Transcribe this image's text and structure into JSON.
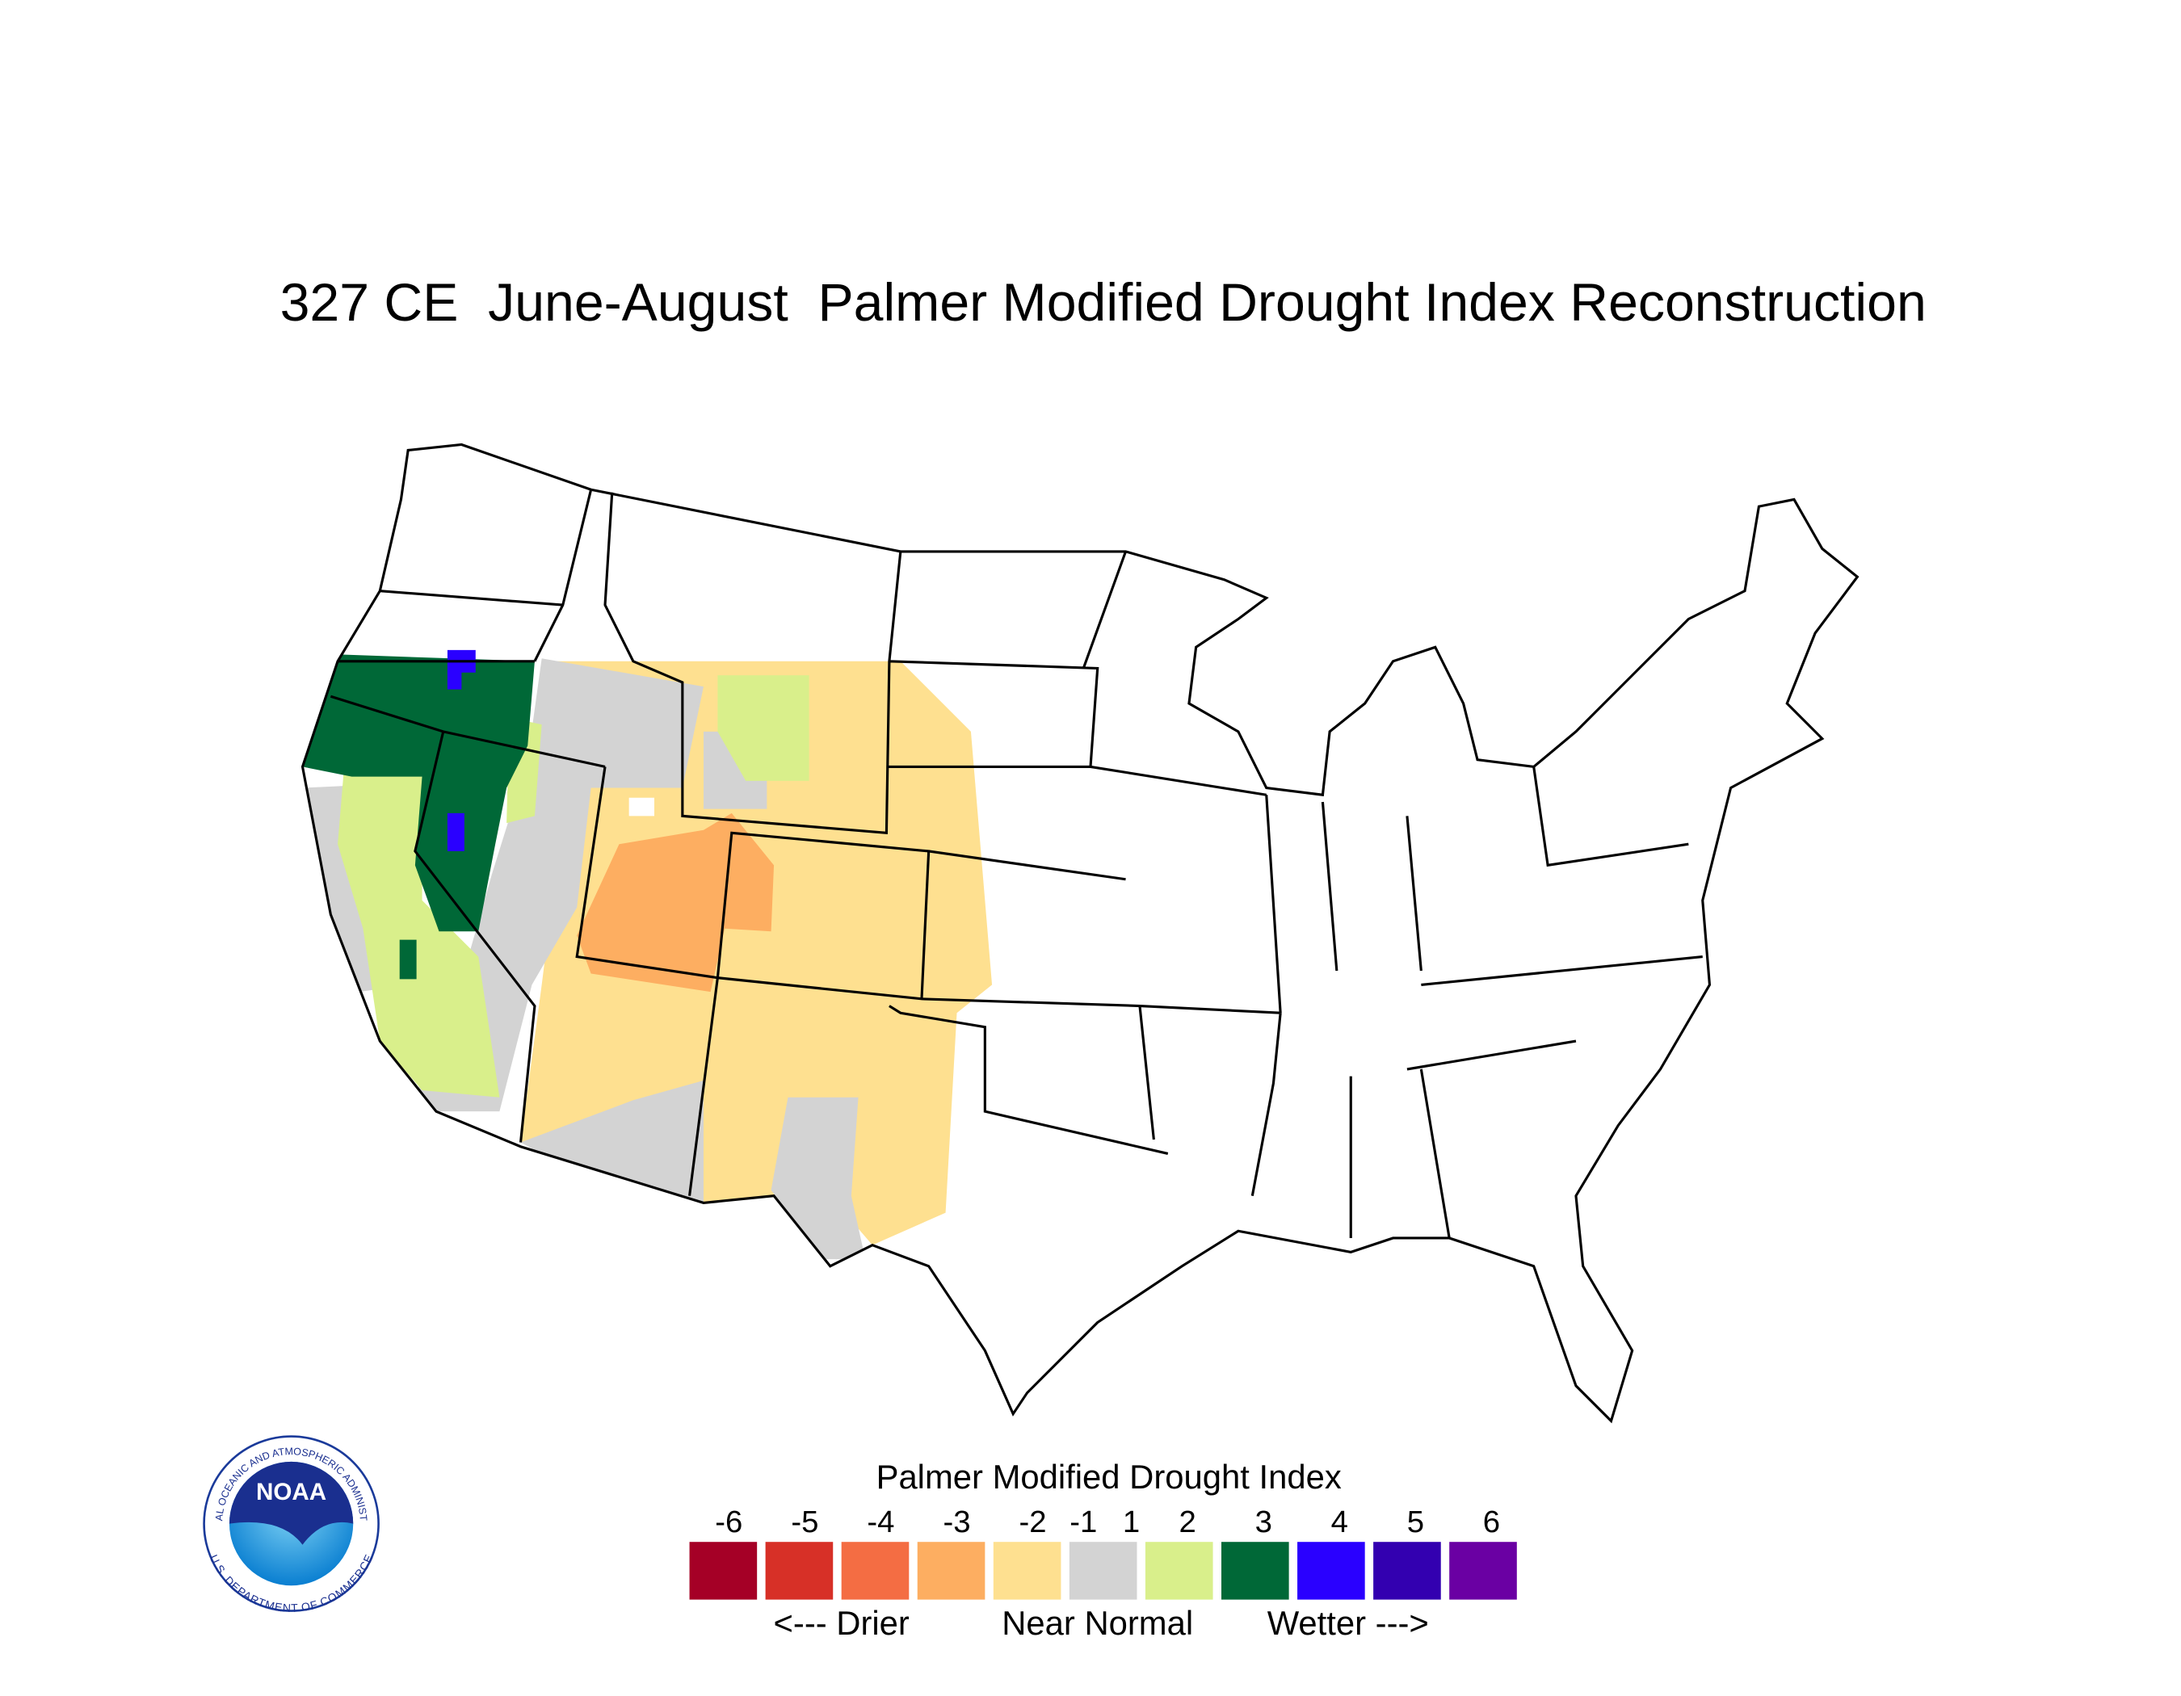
{
  "title": "327 CE  June-August  Palmer Modified Drought Index Reconstruction",
  "legend": {
    "title": "Palmer Modified Drought Index",
    "ticks": [
      -6,
      -5,
      -4,
      -3,
      -2,
      -1,
      1,
      2,
      3,
      4,
      5,
      6
    ],
    "colors": [
      "#a50026",
      "#d73027",
      "#f46d43",
      "#fdae61",
      "#fee090",
      "#d3d3d3",
      "#d9ef8b",
      "#006837",
      "#2a00ff",
      "#3300b0",
      "#6a00a3"
    ],
    "labels": [
      "<--- Drier",
      "Near Normal",
      "Wetter --->"
    ]
  },
  "logo": {
    "name": "NOAA",
    "ring_top": "NATIONAL OCEANIC AND ATMOSPHERIC ADMINISTRATION",
    "ring_bottom": "U.S. DEPARTMENT OF COMMERCE"
  }
}
